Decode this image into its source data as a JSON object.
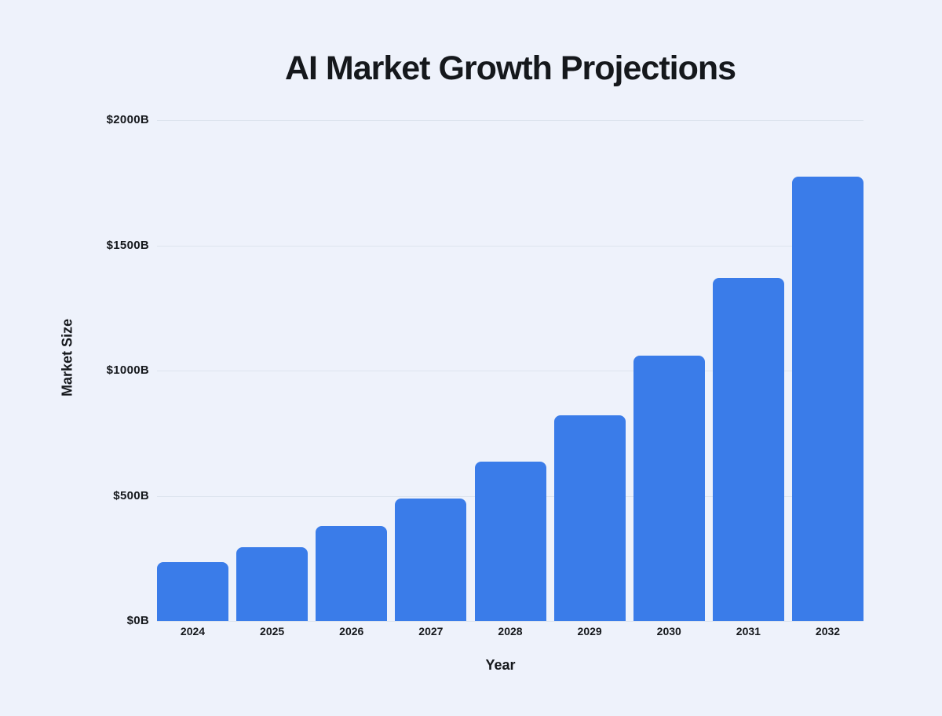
{
  "chart_data": {
    "type": "bar",
    "title": "AI Market Growth Projections",
    "xlabel": "Year",
    "ylabel": "Market Size",
    "categories": [
      "2024",
      "2025",
      "2026",
      "2027",
      "2028",
      "2029",
      "2030",
      "2031",
      "2032"
    ],
    "values": [
      235,
      295,
      380,
      490,
      635,
      820,
      1060,
      1370,
      1775
    ],
    "ylim": [
      0,
      2000
    ],
    "ytick_values": [
      2000,
      1500,
      1000,
      500,
      0
    ],
    "ytick_labels": [
      "$2000B",
      "$1500B",
      "$1000B",
      "$500B",
      "$0B"
    ],
    "grid": "horizontal",
    "legend": null,
    "colors": {
      "background": "#eef2fb",
      "bar": "#3a7ce9",
      "text": "#15181c",
      "gridline": "#dde4ee"
    }
  }
}
